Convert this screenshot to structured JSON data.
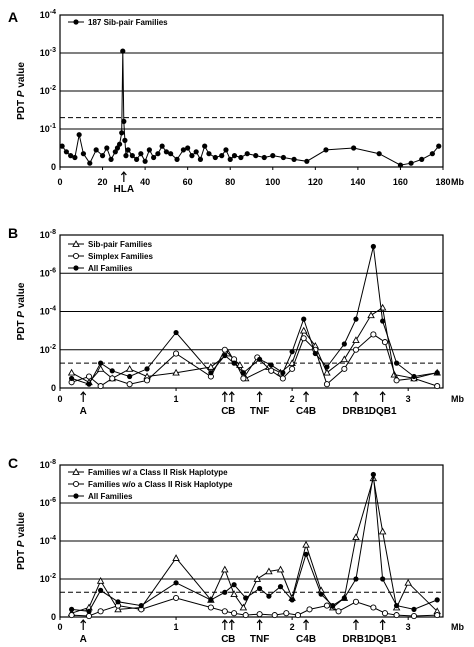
{
  "chart_data": [
    {
      "panel": "A",
      "type": "line",
      "ylabel": "PDT P value",
      "xlabel": "Mb",
      "xlim": [
        0,
        180
      ],
      "y_scale": "log",
      "ylim_exp": [
        0,
        4
      ],
      "y_ticks": [
        "0",
        "10^-1",
        "10^-2",
        "10^-3",
        "10^-4"
      ],
      "x_ticks": [
        "0",
        "20",
        "40",
        "60",
        "80",
        "100",
        "120",
        "140",
        "160",
        "180"
      ],
      "dashed_threshold_exp": 1.3,
      "markers": [
        {
          "label": "HLA",
          "x": 30
        }
      ],
      "legend": [
        {
          "name": "187 Sib-pair Families",
          "marker": "filled"
        }
      ],
      "series": [
        {
          "name": "187 Sib-pair Families",
          "marker": "filled",
          "x": [
            1,
            3,
            5,
            7,
            9,
            11,
            14,
            17,
            20,
            22,
            24,
            26,
            27,
            28,
            29,
            29.5,
            30,
            30.5,
            31,
            32,
            34,
            36,
            38,
            40,
            42,
            44,
            46,
            48,
            50,
            52,
            55,
            58,
            60,
            62,
            64,
            66,
            68,
            70,
            73,
            76,
            78,
            80,
            82,
            85,
            88,
            92,
            96,
            100,
            105,
            110,
            116,
            125,
            138,
            150,
            160,
            165,
            170,
            175,
            178
          ],
          "exp": [
            0.55,
            0.4,
            0.3,
            0.25,
            0.85,
            0.35,
            0.1,
            0.45,
            0.3,
            0.5,
            0.2,
            0.4,
            0.5,
            0.6,
            0.9,
            3.05,
            1.2,
            0.7,
            0.3,
            0.45,
            0.3,
            0.2,
            0.35,
            0.15,
            0.45,
            0.25,
            0.35,
            0.55,
            0.4,
            0.35,
            0.2,
            0.45,
            0.5,
            0.3,
            0.4,
            0.2,
            0.55,
            0.35,
            0.25,
            0.3,
            0.45,
            0.2,
            0.3,
            0.25,
            0.35,
            0.3,
            0.25,
            0.3,
            0.25,
            0.2,
            0.15,
            0.45,
            0.5,
            0.35,
            0.05,
            0.1,
            0.2,
            0.35,
            0.55
          ]
        }
      ]
    },
    {
      "panel": "B",
      "type": "line",
      "ylabel": "PDT P value",
      "xlabel": "Mb",
      "xlim": [
        0,
        3.3
      ],
      "y_scale": "log",
      "ylim_exp": [
        0,
        8
      ],
      "y_ticks": [
        "0",
        "10^-2",
        "10^-4",
        "10^-6",
        "10^-8"
      ],
      "x_ticks": [
        "0",
        "1",
        "2",
        "3"
      ],
      "dashed_threshold_exp": 1.3,
      "markers": [
        {
          "label": "A",
          "x": 0.2
        },
        {
          "label": "C",
          "x": 1.42
        },
        {
          "label": "B",
          "x": 1.48
        },
        {
          "label": "TNF",
          "x": 1.72
        },
        {
          "label": "C4B",
          "x": 2.12
        },
        {
          "label": "DRB1",
          "x": 2.55
        },
        {
          "label": "DQB1",
          "x": 2.78
        }
      ],
      "legend": [
        {
          "name": "Sib-pair Families",
          "marker": "triangle"
        },
        {
          "name": "Simplex Families",
          "marker": "open"
        },
        {
          "name": "All Families",
          "marker": "filled"
        }
      ],
      "series": [
        {
          "name": "Sib-pair Families",
          "marker": "triangle",
          "x": [
            0.1,
            0.25,
            0.35,
            0.45,
            0.6,
            0.75,
            1.0,
            1.3,
            1.45,
            1.55,
            1.6,
            1.8,
            1.9,
            2.0,
            2.1,
            2.2,
            2.3,
            2.45,
            2.55,
            2.68,
            2.78,
            2.88,
            3.05,
            3.25
          ],
          "exp": [
            0.8,
            0.3,
            1.0,
            0.5,
            1.0,
            0.6,
            0.8,
            1.1,
            1.8,
            1.2,
            0.5,
            1.1,
            0.8,
            1.3,
            3.0,
            2.2,
            0.8,
            1.5,
            2.5,
            3.8,
            4.2,
            0.7,
            0.5,
            0.8
          ]
        },
        {
          "name": "Simplex Families",
          "marker": "open",
          "x": [
            0.1,
            0.25,
            0.35,
            0.45,
            0.6,
            0.75,
            1.0,
            1.3,
            1.42,
            1.5,
            1.58,
            1.7,
            1.82,
            1.92,
            2.0,
            2.1,
            2.2,
            2.3,
            2.45,
            2.55,
            2.7,
            2.8,
            2.9,
            3.05,
            3.25
          ],
          "exp": [
            0.3,
            0.6,
            0.1,
            0.5,
            0.2,
            0.4,
            1.8,
            0.6,
            2.0,
            1.5,
            0.5,
            1.6,
            0.9,
            0.5,
            1.0,
            2.6,
            2.0,
            0.2,
            1.0,
            2.0,
            2.8,
            2.4,
            0.4,
            0.5,
            0.1
          ]
        },
        {
          "name": "All Families",
          "marker": "filled",
          "x": [
            0.1,
            0.25,
            0.35,
            0.45,
            0.6,
            0.75,
            1.0,
            1.3,
            1.42,
            1.5,
            1.58,
            1.72,
            1.82,
            1.92,
            2.0,
            2.1,
            2.2,
            2.3,
            2.45,
            2.55,
            2.7,
            2.78,
            2.9,
            3.05,
            3.25
          ],
          "exp": [
            0.5,
            0.2,
            1.3,
            0.9,
            0.6,
            1.0,
            2.9,
            0.8,
            1.7,
            1.3,
            0.8,
            1.5,
            1.2,
            0.8,
            1.9,
            3.6,
            1.8,
            1.1,
            2.3,
            3.6,
            7.4,
            3.5,
            1.3,
            0.6,
            0.8
          ]
        }
      ]
    },
    {
      "panel": "C",
      "type": "line",
      "ylabel": "PDT P value",
      "xlabel": "Mb",
      "xlim": [
        0,
        3.3
      ],
      "y_scale": "log",
      "ylim_exp": [
        0,
        8
      ],
      "y_ticks": [
        "0",
        "10^-2",
        "10^-4",
        "10^-6",
        "10^-8"
      ],
      "x_ticks": [
        "0",
        "1",
        "2",
        "3"
      ],
      "dashed_threshold_exp": 1.3,
      "markers": [
        {
          "label": "A",
          "x": 0.2
        },
        {
          "label": "C",
          "x": 1.42
        },
        {
          "label": "B",
          "x": 1.48
        },
        {
          "label": "TNF",
          "x": 1.72
        },
        {
          "label": "C4B",
          "x": 2.12
        },
        {
          "label": "DRB1",
          "x": 2.55
        },
        {
          "label": "DQB1",
          "x": 2.78
        }
      ],
      "legend": [
        {
          "name": "Families w/ a Class II Risk Haplotype",
          "marker": "triangle"
        },
        {
          "name": "Families w/o a Class II Risk Haplotype",
          "marker": "open"
        },
        {
          "name": "All Families",
          "marker": "filled"
        }
      ],
      "series": [
        {
          "name": "Families w/ a Class II Risk Haplotype",
          "marker": "triangle",
          "x": [
            0.1,
            0.25,
            0.35,
            0.5,
            0.7,
            1.0,
            1.3,
            1.42,
            1.5,
            1.58,
            1.7,
            1.8,
            1.9,
            2.0,
            2.12,
            2.25,
            2.35,
            2.45,
            2.55,
            2.7,
            2.78,
            2.9,
            3.0,
            3.25
          ],
          "exp": [
            0.2,
            0.5,
            1.9,
            0.4,
            0.5,
            3.1,
            0.9,
            2.5,
            1.2,
            0.5,
            2.0,
            2.4,
            2.5,
            1.0,
            3.8,
            1.4,
            0.5,
            1.0,
            4.2,
            7.3,
            4.5,
            0.5,
            1.8,
            0.3
          ]
        },
        {
          "name": "Families w/o a Class II Risk Haplotype",
          "marker": "open",
          "x": [
            0.1,
            0.25,
            0.35,
            0.5,
            0.7,
            1.0,
            1.3,
            1.42,
            1.5,
            1.6,
            1.72,
            1.85,
            1.95,
            2.05,
            2.15,
            2.3,
            2.4,
            2.55,
            2.7,
            2.8,
            2.9,
            3.05,
            3.25
          ],
          "exp": [
            0.1,
            0.05,
            0.3,
            0.6,
            0.4,
            1.0,
            0.5,
            0.3,
            0.2,
            0.1,
            0.15,
            0.1,
            0.2,
            0.1,
            0.4,
            0.6,
            0.3,
            0.8,
            0.5,
            0.2,
            0.1,
            0.05,
            0.1
          ]
        },
        {
          "name": "All Families",
          "marker": "filled",
          "x": [
            0.1,
            0.25,
            0.35,
            0.5,
            0.7,
            1.0,
            1.3,
            1.42,
            1.5,
            1.6,
            1.72,
            1.8,
            1.9,
            2.0,
            2.12,
            2.25,
            2.35,
            2.45,
            2.55,
            2.7,
            2.78,
            2.9,
            3.05,
            3.25
          ],
          "exp": [
            0.4,
            0.3,
            1.4,
            0.8,
            0.6,
            1.8,
            0.9,
            1.3,
            1.7,
            1.0,
            1.5,
            1.1,
            1.6,
            0.9,
            3.3,
            1.2,
            0.6,
            1.0,
            2.0,
            7.5,
            2.0,
            0.6,
            0.4,
            0.9
          ]
        }
      ]
    }
  ]
}
